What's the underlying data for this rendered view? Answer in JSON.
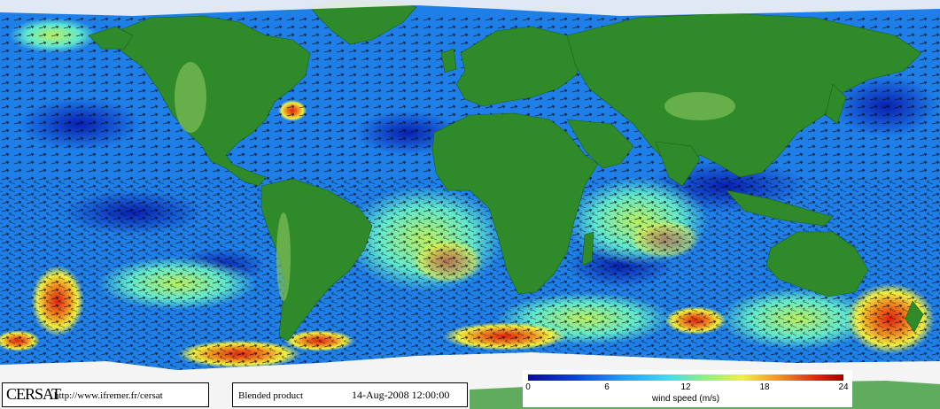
{
  "logo": "CERSAT",
  "credit_url": "http://www.ifremer.fr/cersat",
  "product": "Blended product",
  "datetime": "14-Aug-2008 12:00:00",
  "legend": {
    "title": "wind speed (m/s)",
    "ticks": [
      "0",
      "6",
      "12",
      "18",
      "24"
    ],
    "range": [
      0,
      24
    ],
    "colors": [
      "#0a0aa0",
      "#1040e0",
      "#1ea0ff",
      "#40e0e8",
      "#a0f070",
      "#f0f040",
      "#f09020",
      "#e02010",
      "#a00000"
    ]
  },
  "colors": {
    "land": "#2f8a2a",
    "ocean": "#1e7fe8",
    "ice": "#f4f4f4",
    "arrow": "#000000"
  }
}
